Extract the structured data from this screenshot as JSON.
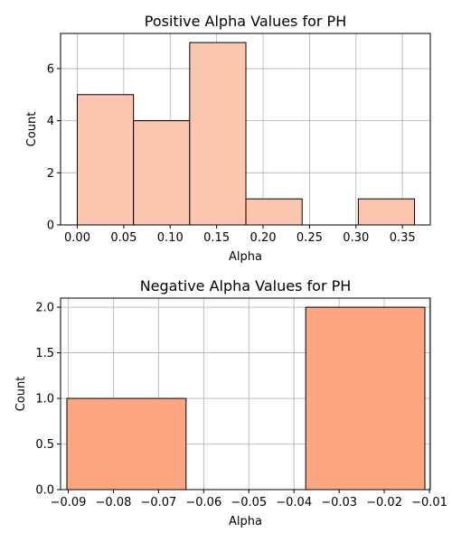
{
  "chart_data": [
    {
      "type": "bar",
      "title": "Positive Alpha Values for PH",
      "xlabel": "Alpha",
      "ylabel": "Count",
      "xlim": [
        -0.018,
        0.38
      ],
      "ylim": [
        0,
        7.35
      ],
      "x_ticks": [
        "0.00",
        "0.05",
        "0.10",
        "0.15",
        "0.20",
        "0.25",
        "0.30",
        "0.35"
      ],
      "y_ticks": [
        "0",
        "2",
        "4",
        "6"
      ],
      "x_tick_values": [
        0.0,
        0.05,
        0.1,
        0.15,
        0.2,
        0.25,
        0.3,
        0.35
      ],
      "y_tick_values": [
        0,
        2,
        4,
        6
      ],
      "bins": [
        {
          "x0": 0.0,
          "x1": 0.0605,
          "count": 5
        },
        {
          "x0": 0.0605,
          "x1": 0.121,
          "count": 4
        },
        {
          "x0": 0.121,
          "x1": 0.1815,
          "count": 7
        },
        {
          "x0": 0.1815,
          "x1": 0.242,
          "count": 1
        },
        {
          "x0": 0.242,
          "x1": 0.3025,
          "count": 0
        },
        {
          "x0": 0.3025,
          "x1": 0.363,
          "count": 1
        }
      ],
      "grid": true,
      "color": "#fcc5ae",
      "edgecolor": "#000000"
    },
    {
      "type": "bar",
      "title": "Negative Alpha Values for PH",
      "xlabel": "Alpha",
      "ylabel": "Count",
      "xlim": [
        -0.0917,
        -0.0098
      ],
      "ylim": [
        0,
        2.1
      ],
      "x_ticks": [
        "−0.09",
        "−0.08",
        "−0.07",
        "−0.06",
        "−0.05",
        "−0.04",
        "−0.03",
        "−0.02",
        "−0.01"
      ],
      "y_ticks": [
        "0.0",
        "0.5",
        "1.0",
        "1.5",
        "2.0"
      ],
      "x_tick_values": [
        -0.09,
        -0.08,
        -0.07,
        -0.06,
        -0.05,
        -0.04,
        -0.03,
        -0.02,
        -0.01
      ],
      "y_tick_values": [
        0,
        0.5,
        1.0,
        1.5,
        2.0
      ],
      "bins": [
        {
          "x0": -0.0903,
          "x1": -0.0639,
          "count": 1
        },
        {
          "x0": -0.0639,
          "x1": -0.0374,
          "count": 0
        },
        {
          "x0": -0.0374,
          "x1": -0.011,
          "count": 2
        }
      ],
      "grid": true,
      "color": "#fca682",
      "edgecolor": "#000000"
    }
  ]
}
